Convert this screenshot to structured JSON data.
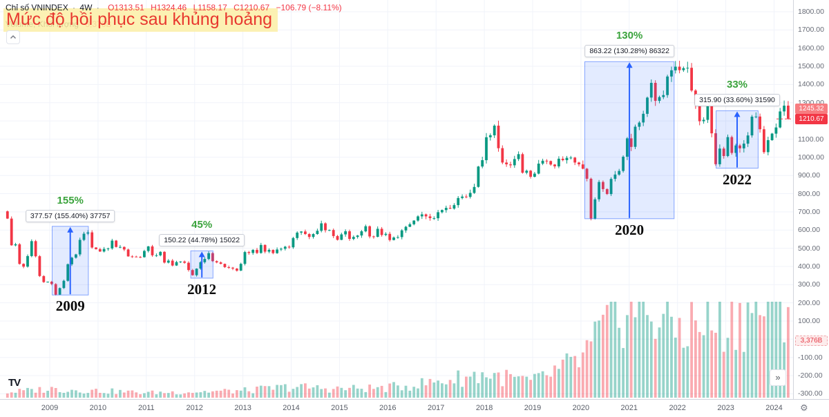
{
  "colors": {
    "up": "#089981",
    "down": "#f23645",
    "grid": "#f0f3fa",
    "range_fill": "rgba(41,98,255,0.13)",
    "range_line": "#2962ff",
    "percent_green": "#3aa33c",
    "legend_red": "#f23645",
    "title_red": "#e8382f",
    "tag_pink": "#f77c80",
    "tag_red": "#f23645"
  },
  "legend": {
    "symbol": "Chỉ số VNINDEX",
    "interval": "4W",
    "sep": "·",
    "o_label": "O",
    "o": "1313.51",
    "h_label": "H",
    "h": "1324.46",
    "l_label": "L",
    "l": "1158.17",
    "c_label": "C",
    "c": "1210.67",
    "change": "−106.79 (−8.11%)",
    "volume_label": "Volume; Khối lượng",
    "volume_value": "3,376B"
  },
  "chart_data": {
    "type": "candlestick",
    "title": "Mức độ hồi phục sau khủng hoảng",
    "symbol": "VNINDEX",
    "interval": "4W",
    "legend_grid": true,
    "start_month": "2008-02",
    "monthly_closes": [
      663,
      516,
      522,
      414,
      399,
      457,
      539,
      456,
      347,
      314,
      316,
      303,
      245,
      281,
      321,
      412,
      448,
      466,
      546,
      580,
      587,
      504,
      495,
      482,
      496,
      499,
      542,
      507,
      507,
      493,
      455,
      454,
      452,
      451,
      485,
      510,
      461,
      461,
      480,
      421,
      432,
      405,
      424,
      427,
      420,
      380,
      352,
      388,
      423,
      441,
      473,
      429,
      422,
      414,
      396,
      393,
      388,
      377,
      414,
      479,
      474,
      491,
      474,
      518,
      481,
      491,
      473,
      493,
      497,
      508,
      505,
      556,
      586,
      592,
      578,
      562,
      578,
      596,
      637,
      599,
      600,
      567,
      546,
      576,
      593,
      551,
      562,
      570,
      593,
      621,
      565,
      563,
      607,
      573,
      579,
      545,
      559,
      561,
      598,
      618,
      632,
      652,
      675,
      686,
      675,
      665,
      665,
      698,
      710,
      722,
      718,
      737,
      776,
      784,
      782,
      804,
      837,
      949,
      984,
      1110,
      1121,
      1174,
      1050,
      971,
      961,
      956,
      990,
      1017,
      915,
      926,
      893,
      910,
      965,
      981,
      979,
      960,
      950,
      992,
      984,
      997,
      998,
      971,
      961,
      937,
      882,
      663,
      769,
      864,
      825,
      798,
      881,
      905,
      925,
      1003,
      1104,
      1057,
      1168,
      1191,
      1239,
      1328,
      1409,
      1310,
      1331,
      1342,
      1444,
      1478,
      1498,
      1479,
      1490,
      1492,
      1367,
      1293,
      1198,
      1206,
      1281,
      1132,
      962,
      1048,
      1007,
      1111,
      1024,
      1065,
      1049,
      1075,
      1120,
      1223,
      1224,
      1154,
      1028,
      1094,
      1130,
      1164,
      1252,
      1284,
      1210.67
    ],
    "volume_envelope": {
      "years": [
        2008,
        2009,
        2010,
        2011,
        2012,
        2013,
        2014,
        2015,
        2016,
        2017,
        2018,
        2019,
        2020,
        2021,
        2022,
        2023,
        2024
      ],
      "values": [
        0.05,
        0.09,
        0.07,
        0.05,
        0.06,
        0.07,
        0.11,
        0.09,
        0.1,
        0.16,
        0.24,
        0.16,
        0.38,
        1.0,
        0.72,
        0.78,
        1.0
      ]
    },
    "y_axis": {
      "min": -300,
      "max": 1800,
      "step": 100
    },
    "x_axis_years": [
      2009,
      2010,
      2011,
      2012,
      2013,
      2014,
      2015,
      2016,
      2017,
      2018,
      2019,
      2020,
      2021,
      2022,
      2023,
      2024
    ],
    "price_marks": [
      {
        "value": "1245.32",
        "color": "#f77c80"
      },
      {
        "value": "1210.67",
        "color": "#f23645"
      }
    ],
    "volume_mark": {
      "value": "3,376B"
    },
    "recovery_boxes": [
      {
        "year": "2009",
        "percent": "155%",
        "detail": "377.57 (155.40%) 37757",
        "t_start": 2009.05,
        "t_end": 2009.8,
        "price_low": 243.0,
        "price_high": 620.57
      },
      {
        "year": "2012",
        "percent": "45%",
        "detail": "150.22 (44.78%) 15022",
        "t_start": 2011.92,
        "t_end": 2012.38,
        "price_low": 335.5,
        "price_high": 485.72
      },
      {
        "year": "2020",
        "percent": "130%",
        "detail": "863.22 (130.28%) 86322",
        "t_start": 2020.08,
        "t_end": 2021.93,
        "price_low": 662.5,
        "price_high": 1525.72
      },
      {
        "year": "2022",
        "percent": "33%",
        "detail": "315.90 (33.60%) 31590",
        "t_start": 2022.8,
        "t_end": 2023.67,
        "price_low": 940.0,
        "price_high": 1255.9
      }
    ]
  },
  "footer": {
    "logo_text": "TV"
  },
  "buttons": {
    "more_glyph": "»",
    "settings_glyph": "⚙"
  }
}
